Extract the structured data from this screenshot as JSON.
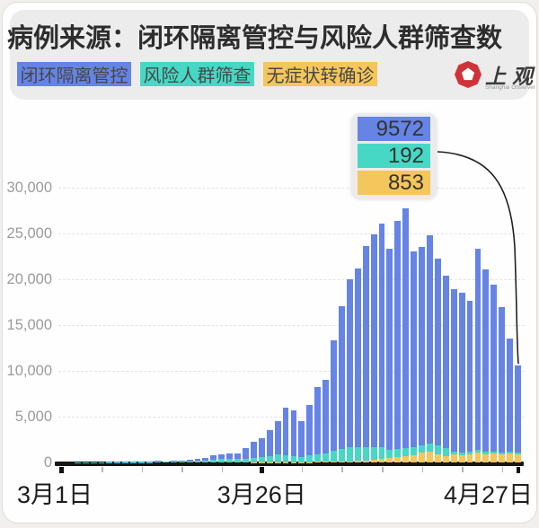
{
  "page": {
    "background": "#f1f0ee",
    "card_border": "#e0ddd6"
  },
  "header": {
    "title": "病例来源：闭环隔离管控与风险人群筛查数",
    "legend": [
      {
        "label": "闭环隔离管控",
        "color": "#6584e4"
      },
      {
        "label": "风险人群筛查",
        "color": "#46d8c5"
      },
      {
        "label": "无症状转确诊",
        "color": "#f4c65c"
      }
    ],
    "logo": {
      "name": "上观",
      "subtitle": "Shanghai Observer",
      "color": "#cf3339"
    }
  },
  "callout": {
    "values": [
      {
        "text": "9572",
        "color": "#6584e4"
      },
      {
        "text": "192",
        "color": "#46d8c5"
      },
      {
        "text": "853",
        "color": "#f4c65c"
      }
    ]
  },
  "chart_data": {
    "type": "bar",
    "stacked": true,
    "title": "病例来源：闭环隔离管控与风险人群筛查数",
    "legend_position": "top",
    "grid": "dashed-horizontal",
    "y_axis": {
      "range": [
        0,
        30000
      ],
      "ticks": [
        {
          "value": 30000,
          "label": "30,000"
        },
        {
          "value": 25000,
          "label": "25,000"
        },
        {
          "value": 20000,
          "label": "20,000"
        },
        {
          "value": 15000,
          "label": "15,000"
        },
        {
          "value": 10000,
          "label": "10,000"
        },
        {
          "value": 5000,
          "label": "5,000"
        },
        {
          "value": 0,
          "label": "0"
        }
      ]
    },
    "x_axis": {
      "tick_labels": [
        {
          "index": 0,
          "label": "3月1日"
        },
        {
          "index": 25,
          "label": "3月26日"
        },
        {
          "index": 57,
          "label": "4月27日"
        }
      ],
      "minor_tick_every_days": 5
    },
    "dates": [
      "3月1日",
      "3月2日",
      "3月3日",
      "3月4日",
      "3月5日",
      "3月6日",
      "3月7日",
      "3月8日",
      "3月9日",
      "3月10日",
      "3月11日",
      "3月12日",
      "3月13日",
      "3月14日",
      "3月15日",
      "3月16日",
      "3月17日",
      "3月18日",
      "3月19日",
      "3月20日",
      "3月21日",
      "3月22日",
      "3月23日",
      "3月24日",
      "3月25日",
      "3月26日",
      "3月27日",
      "3月28日",
      "3月29日",
      "3月30日",
      "3月31日",
      "4月1日",
      "4月2日",
      "4月3日",
      "4月4日",
      "4月5日",
      "4月6日",
      "4月7日",
      "4月8日",
      "4月9日",
      "4月10日",
      "4月11日",
      "4月12日",
      "4月13日",
      "4月14日",
      "4月15日",
      "4月16日",
      "4月17日",
      "4月18日",
      "4月19日",
      "4月20日",
      "4月21日",
      "4月22日",
      "4月23日",
      "4月24日",
      "4月25日",
      "4月26日",
      "4月27日"
    ],
    "series": [
      {
        "name": "闭环隔离管控",
        "color": "#6584e4",
        "stack_position": "top",
        "values": [
          1,
          4,
          8,
          10,
          15,
          26,
          30,
          35,
          44,
          41,
          45,
          35,
          93,
          77,
          111,
          87,
          143,
          207,
          281,
          424,
          501,
          556,
          558,
          1253,
          1781,
          2106,
          2788,
          3612,
          5242,
          4948,
          3932,
          5571,
          7296,
          7996,
          12124,
          15627,
          18362,
          19572,
          21974,
          23243,
          24387,
          21942,
          24880,
          26149,
          21422,
          21633,
          22770,
          20368,
          18866,
          17681,
          17385,
          16479,
          21970,
          19858,
          18235,
          15870,
          12412,
          9572
        ]
      },
      {
        "name": "风险人群筛查",
        "color": "#46d8c5",
        "stack_position": "middle",
        "values": [
          1,
          4,
          8,
          9,
          13,
          22,
          25,
          30,
          36,
          34,
          38,
          30,
          76,
          62,
          90,
          70,
          115,
          165,
          225,
          330,
          390,
          420,
          420,
          350,
          480,
          560,
          700,
          850,
          720,
          680,
          540,
          700,
          880,
          950,
          1150,
          1350,
          1500,
          1500,
          1450,
          1400,
          1300,
          900,
          850,
          850,
          820,
          830,
          900,
          980,
          820,
          330,
          310,
          250,
          300,
          280,
          220,
          210,
          200,
          192
        ]
      },
      {
        "name": "无症状转确诊",
        "color": "#f4c65c",
        "stack_position": "bottom",
        "values": [
          0,
          0,
          0,
          0,
          0,
          0,
          0,
          0,
          0,
          0,
          0,
          0,
          0,
          0,
          1,
          1,
          2,
          2,
          3,
          4,
          5,
          5,
          5,
          6,
          8,
          10,
          12,
          15,
          20,
          25,
          30,
          40,
          50,
          60,
          80,
          100,
          120,
          150,
          200,
          300,
          400,
          500,
          600,
          720,
          830,
          1050,
          1150,
          900,
          730,
          890,
          800,
          900,
          1100,
          920,
          1000,
          900,
          950,
          853
        ]
      }
    ],
    "annotation": {
      "target_date": "4月27日",
      "values": [
        9572,
        192,
        853
      ]
    }
  }
}
